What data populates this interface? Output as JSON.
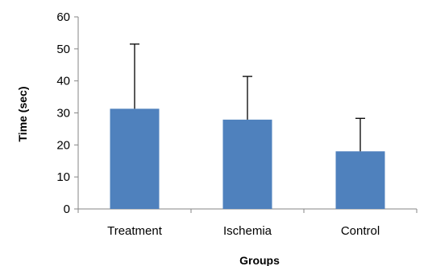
{
  "chart_data": {
    "type": "bar",
    "title": "",
    "xlabel": "Groups",
    "ylabel": "Time (sec)",
    "categories": [
      "Treatment",
      "Ischemia",
      "Control"
    ],
    "values": [
      31.3,
      27.9,
      18
    ],
    "error_upper": [
      20.2,
      13.5,
      10.3
    ],
    "ylim": [
      0,
      60
    ],
    "yticks": [
      0,
      10,
      20,
      30,
      40,
      50,
      60
    ],
    "grid": false,
    "legend": "none",
    "colors": {
      "bar": "#4F81BD",
      "axis": "#868686",
      "error_bar": "#000000"
    }
  }
}
